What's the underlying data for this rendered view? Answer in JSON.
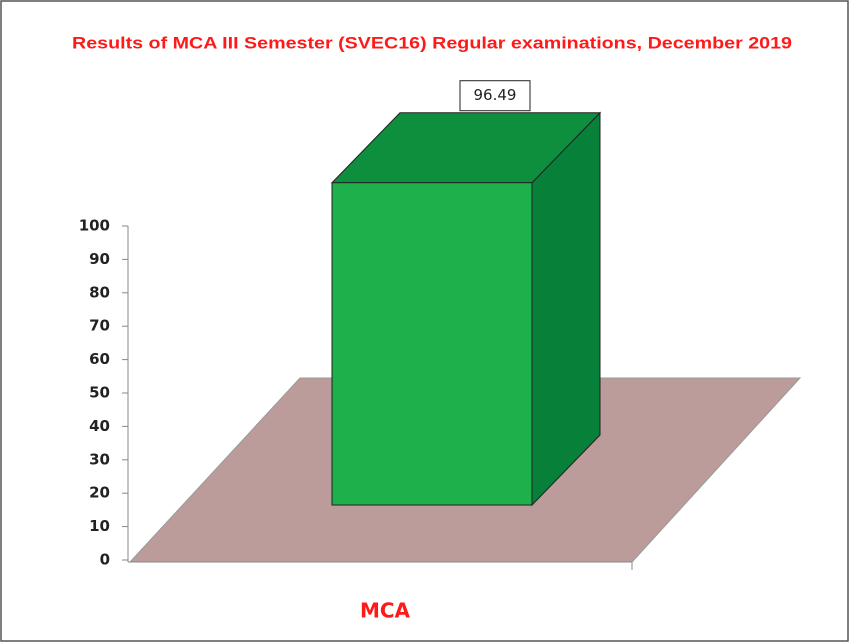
{
  "chart_data": {
    "type": "bar3d",
    "title": "Results of MCA III Semester (SVEC16) Regular examinations, December 2019",
    "categories": [
      "MCA"
    ],
    "values": [
      96.49
    ],
    "color": "#1eb04a",
    "ylim": [
      0,
      100
    ],
    "yticks": [
      0,
      10,
      20,
      30,
      40,
      50,
      60,
      70,
      80,
      90,
      100
    ],
    "floor_color": "#bb9c9a"
  }
}
